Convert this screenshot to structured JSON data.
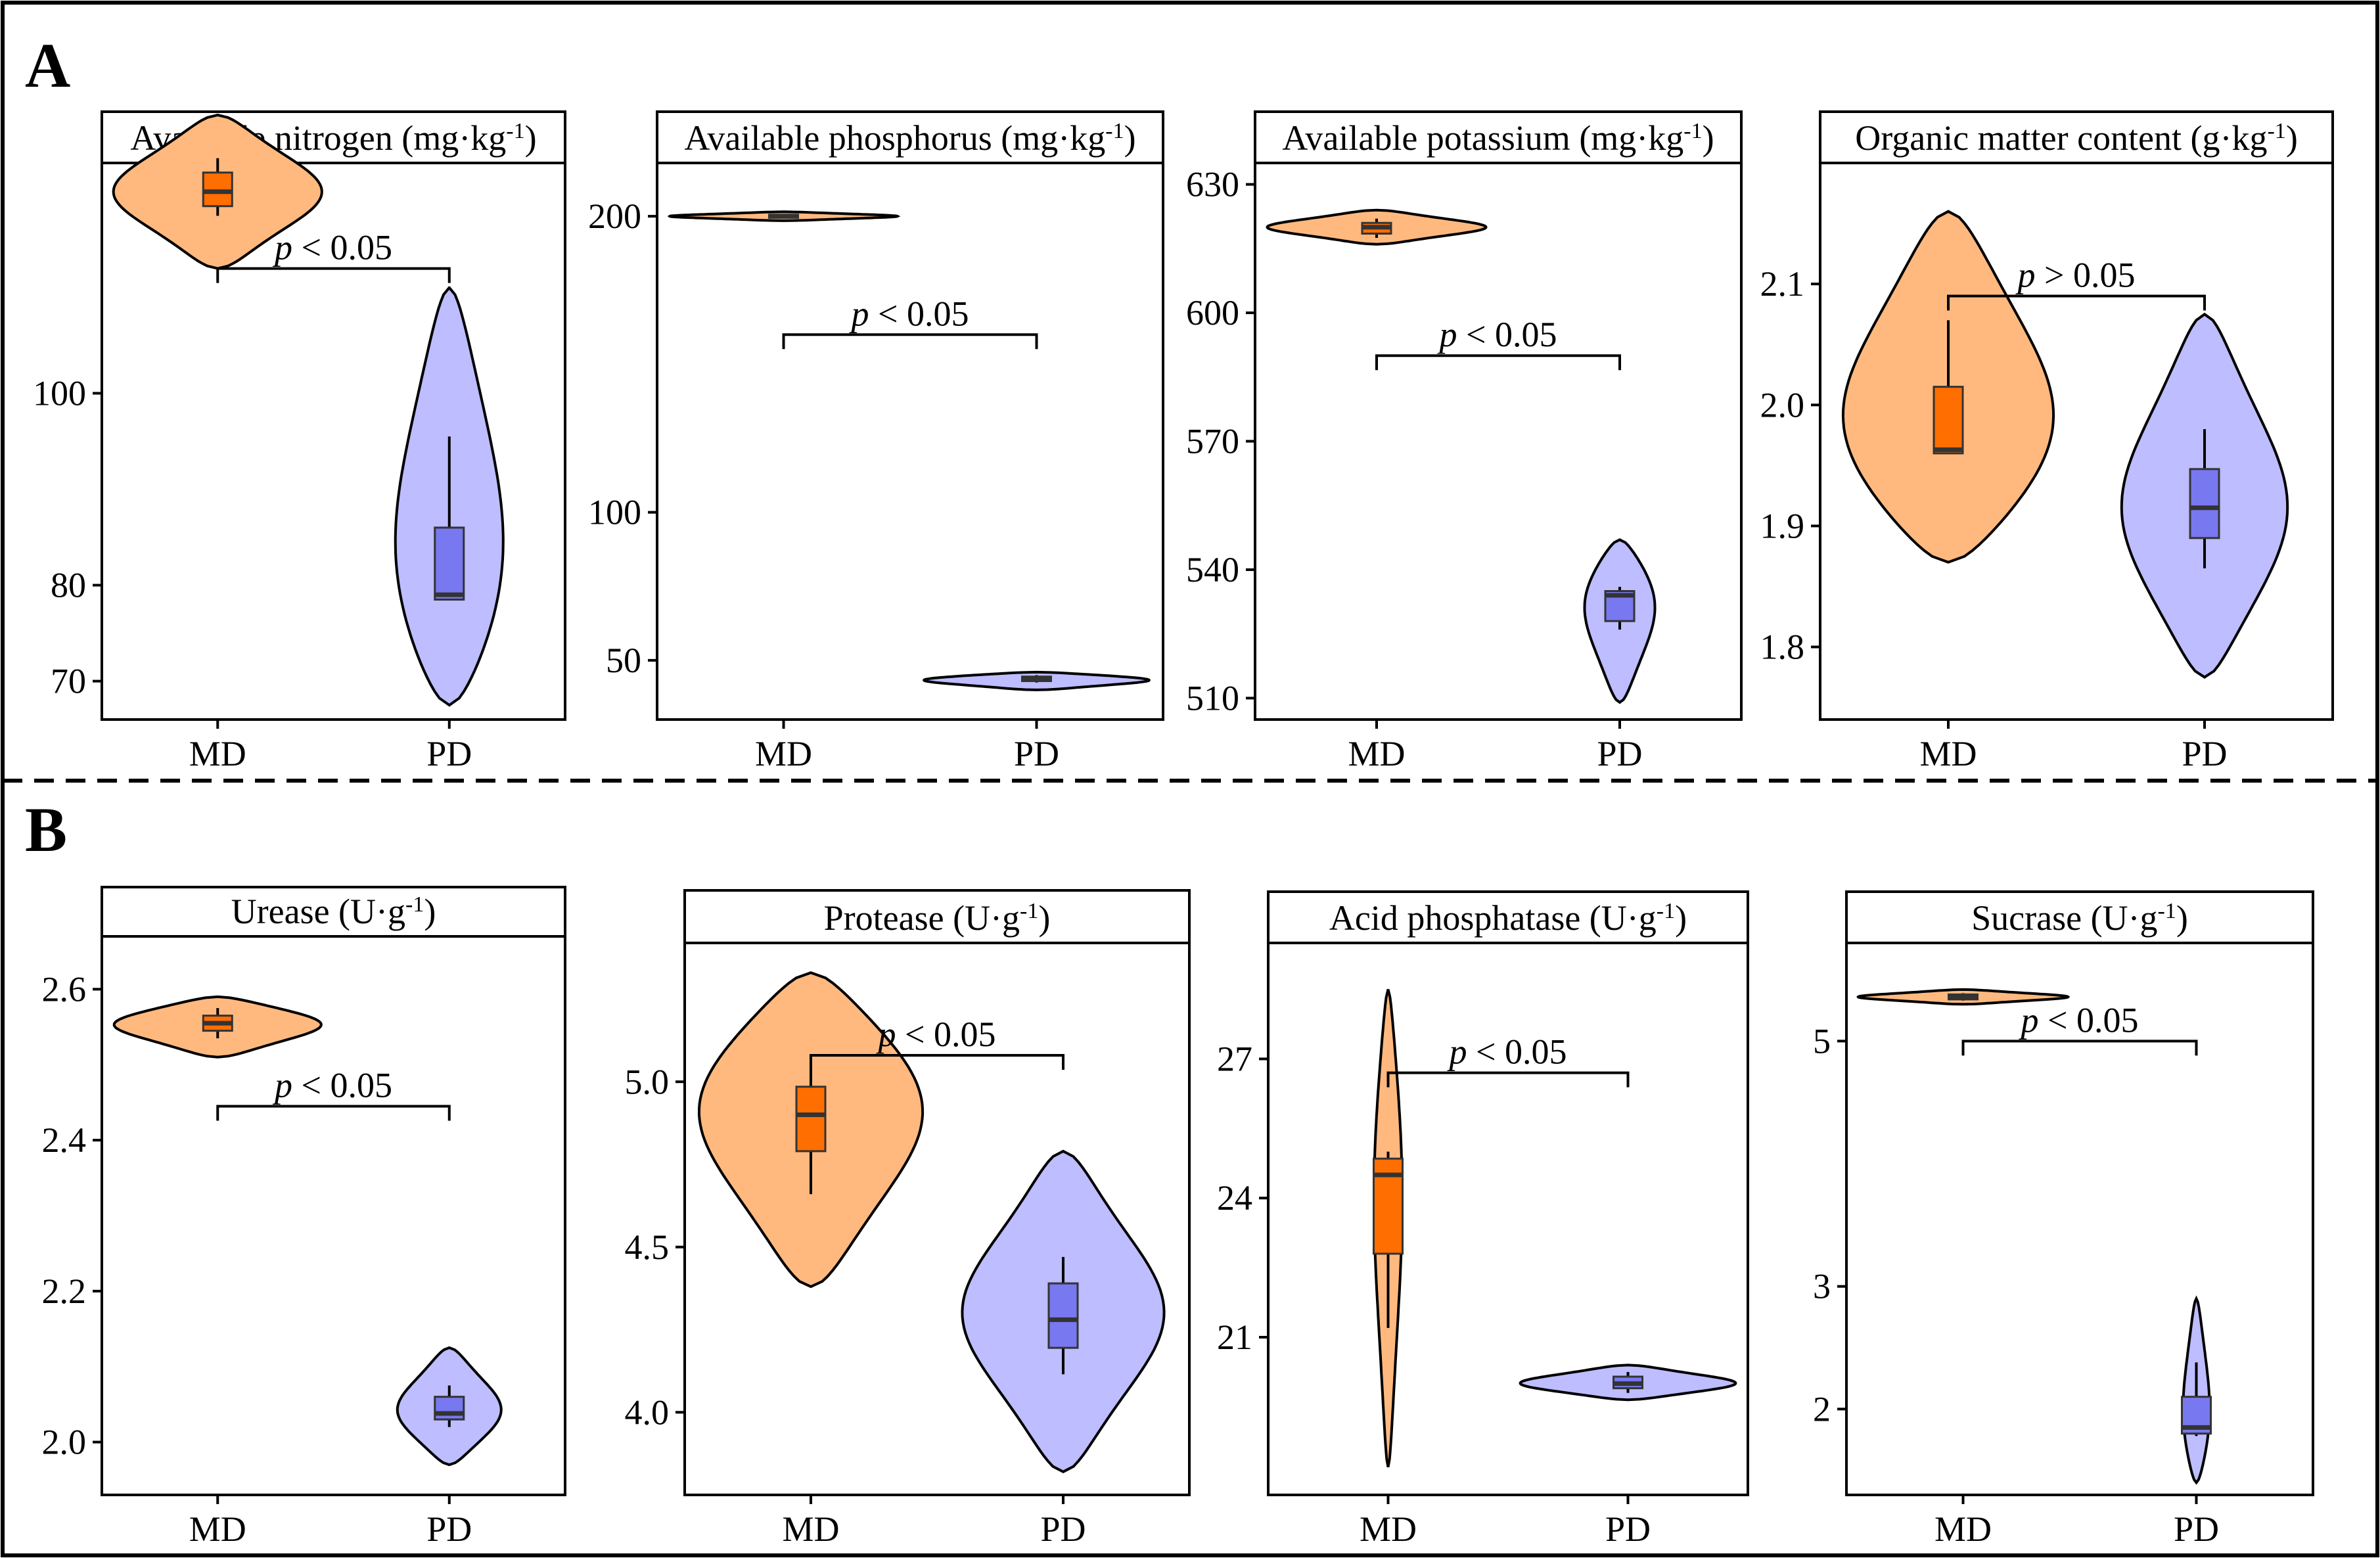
{
  "figure": {
    "sections": [
      {
        "letter": "A"
      },
      {
        "letter": "B"
      }
    ]
  },
  "colors": {
    "MD_violin": "#FFB97F",
    "MD_box": "#FF6E00",
    "PD_violin": "#BDBDFF",
    "PD_box": "#7878F0",
    "outline": "#000000"
  },
  "chart_data": [
    {
      "type": "violin",
      "title": "Available nitrogen (mg·kg",
      "title_sup": "-1",
      "title_close": ")",
      "categories": [
        "MD",
        "PD"
      ],
      "yticks": [
        70,
        80,
        100
      ],
      "ylim": [
        66,
        124
      ],
      "series": [
        {
          "name": "MD",
          "violin_min": 113,
          "violin_max": 129,
          "q1": 119.5,
          "median": 121,
          "q3": 123,
          "whisker_low": 118.5,
          "whisker_high": 124.5,
          "mode": 121,
          "width": 0.9
        },
        {
          "name": "PD",
          "violin_min": 67.5,
          "violin_max": 111,
          "q1": 78.5,
          "median": 79,
          "q3": 86,
          "whisker_low": 78.5,
          "whisker_high": 95.5,
          "mode": 79,
          "width": 0.5
        }
      ],
      "comparison": {
        "label": "p < 0.05",
        "y": 113
      }
    },
    {
      "type": "violin",
      "title": "Available phosphorus (mg·kg",
      "title_sup": "-1",
      "title_close": ")",
      "categories": [
        "MD",
        "PD"
      ],
      "yticks": [
        50,
        100,
        200
      ],
      "ylim": [
        30,
        218
      ],
      "series": [
        {
          "name": "MD",
          "violin_min": 198.5,
          "violin_max": 201.5,
          "q1": 199.5,
          "median": 200,
          "q3": 200.5,
          "whisker_low": 199.2,
          "whisker_high": 200.8,
          "mode": 200,
          "width": 0.9
        },
        {
          "name": "PD",
          "violin_min": 40,
          "violin_max": 46,
          "q1": 43,
          "median": 43.5,
          "q3": 44.5,
          "whisker_low": 42.5,
          "whisker_high": 45,
          "mode": 43.5,
          "width": 0.9
        }
      ],
      "comparison": {
        "label": "p < 0.05",
        "y": 160
      }
    },
    {
      "type": "violin",
      "title": "Available potassium (mg·kg",
      "title_sup": "-1",
      "title_close": ")",
      "categories": [
        "MD",
        "PD"
      ],
      "yticks": [
        510,
        540,
        570,
        600,
        630
      ],
      "ylim": [
        505,
        635
      ],
      "series": [
        {
          "name": "MD",
          "violin_min": 616,
          "violin_max": 624,
          "q1": 618.5,
          "median": 620,
          "q3": 621,
          "whisker_low": 617.5,
          "whisker_high": 622,
          "mode": 620,
          "width": 0.9
        },
        {
          "name": "PD",
          "violin_min": 509,
          "violin_max": 547,
          "q1": 528,
          "median": 534,
          "q3": 535,
          "whisker_low": 526,
          "whisker_high": 536,
          "mode": 534,
          "width": 0.3
        }
      ],
      "comparison": {
        "label": "p < 0.05",
        "y": 590
      }
    },
    {
      "type": "violin",
      "title": "Organic matter content (g·kg",
      "title_sup": "-1",
      "title_close": ")",
      "categories": [
        "MD",
        "PD"
      ],
      "yticks": [
        1.8,
        1.9,
        2.0,
        2.1
      ],
      "ylim": [
        1.74,
        2.2
      ],
      "series": [
        {
          "name": "MD",
          "violin_min": 1.87,
          "violin_max": 2.16,
          "q1": 1.96,
          "median": 1.963,
          "q3": 2.015,
          "whisker_low": 1.96,
          "whisker_high": 2.07,
          "mode": 1.97,
          "width": 0.85
        },
        {
          "name": "PD",
          "violin_min": 1.775,
          "violin_max": 2.075,
          "q1": 1.89,
          "median": 1.915,
          "q3": 1.947,
          "whisker_low": 1.865,
          "whisker_high": 1.98,
          "mode": 1.91,
          "width": 0.65
        }
      ],
      "comparison": {
        "label": "p > 0.05",
        "y": 2.09
      }
    },
    {
      "type": "violin",
      "title": "Urease (U·g",
      "title_sup": "-1",
      "title_close": ")",
      "categories": [
        "MD",
        "PD"
      ],
      "yticks": [
        2.0,
        2.2,
        2.4,
        2.6
      ],
      "ylim": [
        1.93,
        2.67
      ],
      "series": [
        {
          "name": "MD",
          "violin_min": 2.51,
          "violin_max": 2.59,
          "q1": 2.545,
          "median": 2.555,
          "q3": 2.565,
          "whisker_low": 2.535,
          "whisker_high": 2.575,
          "mode": 2.555,
          "width": 0.9
        },
        {
          "name": "PD",
          "violin_min": 1.97,
          "violin_max": 2.125,
          "q1": 2.03,
          "median": 2.038,
          "q3": 2.06,
          "whisker_low": 2.02,
          "whisker_high": 2.075,
          "mode": 2.04,
          "width": 0.45
        }
      ],
      "comparison": {
        "label": "p < 0.05",
        "y": 2.445
      }
    },
    {
      "type": "violin",
      "title": "Protease (U·g",
      "title_sup": "-1",
      "title_close": ")",
      "categories": [
        "MD",
        "PD"
      ],
      "yticks": [
        4.0,
        4.5,
        5.0
      ],
      "ylim": [
        3.75,
        5.42
      ],
      "series": [
        {
          "name": "MD",
          "violin_min": 4.38,
          "violin_max": 5.33,
          "q1": 4.79,
          "median": 4.9,
          "q3": 4.985,
          "whisker_low": 4.66,
          "whisker_high": 5.05,
          "mode": 4.95,
          "width": 0.9
        },
        {
          "name": "PD",
          "violin_min": 3.82,
          "violin_max": 4.79,
          "q1": 4.195,
          "median": 4.28,
          "q3": 4.39,
          "whisker_low": 4.115,
          "whisker_high": 4.47,
          "mode": 4.3,
          "width": 0.8
        }
      ],
      "comparison": {
        "label": "p < 0.05",
        "y": 5.08
      }
    },
    {
      "type": "violin",
      "title": "Acid phosphatase (U·g",
      "title_sup": "-1",
      "title_close": ")",
      "categories": [
        "MD",
        "PD"
      ],
      "yticks": [
        21,
        24,
        27
      ],
      "ylim": [
        17.6,
        29.5
      ],
      "series": [
        {
          "name": "MD",
          "violin_min": 18.2,
          "violin_max": 28.5,
          "q1": 22.8,
          "median": 24.5,
          "q3": 24.85,
          "whisker_low": 21.2,
          "whisker_high": 25.0,
          "mode": 24.5,
          "width": 0.12
        },
        {
          "name": "PD",
          "violin_min": 19.65,
          "violin_max": 20.4,
          "q1": 19.9,
          "median": 20.0,
          "q3": 20.15,
          "whisker_low": 19.8,
          "whisker_high": 20.25,
          "mode": 20.0,
          "width": 0.9
        }
      ],
      "comparison": {
        "label": "p < 0.05",
        "y": 26.7
      }
    },
    {
      "type": "violin",
      "title": "Sucrase (U·g",
      "title_sup": "-1",
      "title_close": ")",
      "categories": [
        "MD",
        "PD"
      ],
      "yticks": [
        2,
        3,
        5
      ],
      "ylim": [
        1.3,
        5.8
      ],
      "series": [
        {
          "name": "MD",
          "violin_min": 5.3,
          "violin_max": 5.42,
          "q1": 5.34,
          "median": 5.36,
          "q3": 5.38,
          "whisker_low": 5.33,
          "whisker_high": 5.39,
          "mode": 5.36,
          "width": 0.9
        },
        {
          "name": "PD",
          "violin_min": 1.4,
          "violin_max": 2.9,
          "q1": 1.8,
          "median": 1.85,
          "q3": 2.1,
          "whisker_low": 1.78,
          "whisker_high": 2.38,
          "mode": 1.85,
          "width": 0.12
        }
      ],
      "comparison": {
        "label": "p < 0.05",
        "y": 5.0
      }
    }
  ]
}
